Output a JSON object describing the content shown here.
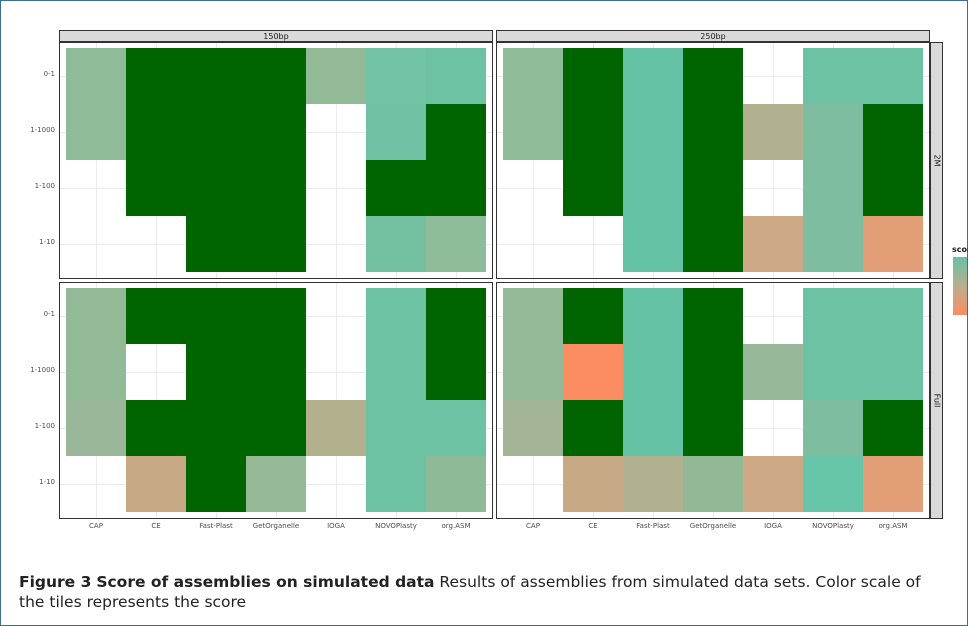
{
  "chart_data": {
    "type": "heatmap",
    "categories": [
      "CAP",
      "CE",
      "Fast-Plast",
      "GetOrganelle",
      "IOGA",
      "NOVOPlasty",
      "org.ASM"
    ],
    "rows": [
      "0-1",
      "1-1000",
      "1-100",
      "1-10"
    ],
    "column_facets": [
      "150bp",
      "250bp"
    ],
    "row_facets": [
      "2M",
      "Full"
    ],
    "legend_title": "score",
    "color_low": "#fc8d62",
    "color_mid": "#66c2a5",
    "color_high": "#006400",
    "panels": [
      {
        "col": "150bp",
        "row": "2M",
        "tiles": [
          {
            "x": "CAP",
            "y": 0,
            "h": 2,
            "color": "#90bb98"
          },
          {
            "x": "CE",
            "y": 0,
            "h": 3,
            "color": "#006400"
          },
          {
            "x": "Fast-Plast",
            "y": 0,
            "h": 4,
            "color": "#006400"
          },
          {
            "x": "GetOrganelle",
            "y": 0,
            "h": 4,
            "color": "#006400"
          },
          {
            "x": "IOGA",
            "y": 0,
            "h": 1,
            "color": "#93ba97"
          },
          {
            "x": "NOVOPlasty",
            "y": 0,
            "h": 1,
            "color": "#73c3a5"
          },
          {
            "x": "NOVOPlasty",
            "y": 1,
            "h": 1,
            "color": "#6fc2a4"
          },
          {
            "x": "NOVOPlasty",
            "y": 2,
            "h": 1,
            "color": "#006400"
          },
          {
            "x": "NOVOPlasty",
            "y": 3,
            "h": 1,
            "color": "#74c1a1"
          },
          {
            "x": "org.ASM",
            "y": 0,
            "h": 1,
            "color": "#6ec2a4"
          },
          {
            "x": "org.ASM",
            "y": 1,
            "h": 2,
            "color": "#006400"
          },
          {
            "x": "org.ASM",
            "y": 3,
            "h": 1,
            "color": "#8ebb99"
          }
        ]
      },
      {
        "col": "250bp",
        "row": "2M",
        "tiles": [
          {
            "x": "CAP",
            "y": 0,
            "h": 2,
            "color": "#90bb98"
          },
          {
            "x": "CE",
            "y": 0,
            "h": 3,
            "color": "#006400"
          },
          {
            "x": "Fast-Plast",
            "y": 0,
            "h": 4,
            "color": "#66c2a5"
          },
          {
            "x": "GetOrganelle",
            "y": 0,
            "h": 4,
            "color": "#006400"
          },
          {
            "x": "IOGA",
            "y": 1,
            "h": 1,
            "color": "#b1b18f"
          },
          {
            "x": "IOGA",
            "y": 3,
            "h": 1,
            "color": "#cca885"
          },
          {
            "x": "NOVOPlasty",
            "y": 0,
            "h": 1,
            "color": "#6cc2a3"
          },
          {
            "x": "NOVOPlasty",
            "y": 1,
            "h": 3,
            "color": "#7ebda0"
          },
          {
            "x": "org.ASM",
            "y": 0,
            "h": 1,
            "color": "#6cc2a3"
          },
          {
            "x": "org.ASM",
            "y": 1,
            "h": 2,
            "color": "#006400"
          },
          {
            "x": "org.ASM",
            "y": 3,
            "h": 1,
            "color": "#e29e77"
          }
        ]
      },
      {
        "col": "150bp",
        "row": "Full",
        "tiles": [
          {
            "x": "CAP",
            "y": 0,
            "h": 2,
            "color": "#93ba97"
          },
          {
            "x": "CAP",
            "y": 2,
            "h": 1,
            "color": "#9ab799"
          },
          {
            "x": "CE",
            "y": 0,
            "h": 1,
            "color": "#006400"
          },
          {
            "x": "CE",
            "y": 2,
            "h": 1,
            "color": "#006400"
          },
          {
            "x": "CE",
            "y": 3,
            "h": 1,
            "color": "#c8a985"
          },
          {
            "x": "Fast-Plast",
            "y": 0,
            "h": 4,
            "color": "#006400"
          },
          {
            "x": "GetOrganelle",
            "y": 0,
            "h": 3,
            "color": "#006400"
          },
          {
            "x": "GetOrganelle",
            "y": 3,
            "h": 1,
            "color": "#95b996"
          },
          {
            "x": "IOGA",
            "y": 2,
            "h": 1,
            "color": "#b3b08e"
          },
          {
            "x": "NOVOPlasty",
            "y": 0,
            "h": 4,
            "color": "#6ec2a4"
          },
          {
            "x": "org.ASM",
            "y": 0,
            "h": 2,
            "color": "#006400"
          },
          {
            "x": "org.ASM",
            "y": 2,
            "h": 1,
            "color": "#6cc2a3"
          },
          {
            "x": "org.ASM",
            "y": 3,
            "h": 1,
            "color": "#8fba97"
          }
        ]
      },
      {
        "col": "250bp",
        "row": "Full",
        "tiles": [
          {
            "x": "CAP",
            "y": 0,
            "h": 2,
            "color": "#93ba97"
          },
          {
            "x": "CAP",
            "y": 2,
            "h": 1,
            "color": "#a3b595"
          },
          {
            "x": "CE",
            "y": 0,
            "h": 1,
            "color": "#006400"
          },
          {
            "x": "CE",
            "y": 1,
            "h": 1,
            "color": "#fc8d62"
          },
          {
            "x": "CE",
            "y": 2,
            "h": 1,
            "color": "#006400"
          },
          {
            "x": "CE",
            "y": 3,
            "h": 1,
            "color": "#c8a985"
          },
          {
            "x": "Fast-Plast",
            "y": 0,
            "h": 3,
            "color": "#66c2a5"
          },
          {
            "x": "Fast-Plast",
            "y": 3,
            "h": 1,
            "color": "#b1b18f"
          },
          {
            "x": "GetOrganelle",
            "y": 0,
            "h": 3,
            "color": "#006400"
          },
          {
            "x": "GetOrganelle",
            "y": 3,
            "h": 1,
            "color": "#92b996"
          },
          {
            "x": "IOGA",
            "y": 1,
            "h": 1,
            "color": "#96b898"
          },
          {
            "x": "IOGA",
            "y": 3,
            "h": 1,
            "color": "#cca885"
          },
          {
            "x": "NOVOPlasty",
            "y": 0,
            "h": 2,
            "color": "#6cc2a3"
          },
          {
            "x": "NOVOPlasty",
            "y": 2,
            "h": 1,
            "color": "#7ebda0"
          },
          {
            "x": "NOVOPlasty",
            "y": 3,
            "h": 1,
            "color": "#66c4a8"
          },
          {
            "x": "org.ASM",
            "y": 0,
            "h": 2,
            "color": "#6cc2a3"
          },
          {
            "x": "org.ASM",
            "y": 2,
            "h": 1,
            "color": "#006400"
          },
          {
            "x": "org.ASM",
            "y": 3,
            "h": 1,
            "color": "#e29e77"
          }
        ]
      }
    ]
  },
  "caption": {
    "label": "Figure 3",
    "title": "Score of assemblies on simulated data",
    "body": " Results of assemblies from simulated data sets. Color scale of the tiles represents the score"
  }
}
